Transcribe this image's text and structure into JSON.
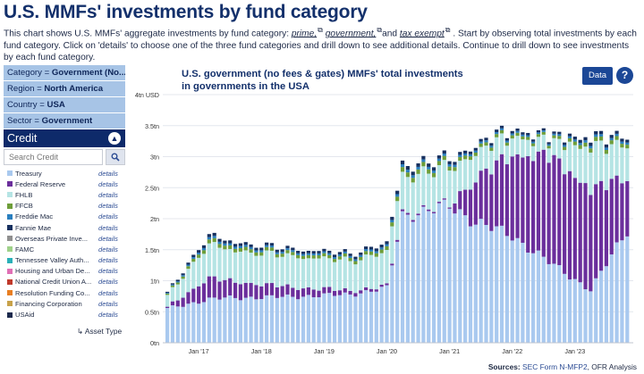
{
  "page": {
    "title": "U.S. MMFs' investments by fund category",
    "intro_pre": "This chart shows U.S. MMFs' aggregate investments by fund category: ",
    "link_prime": "prime,",
    "link_government": "government,",
    "intro_and": "and ",
    "link_tax_exempt": "tax exempt",
    "intro_post": ". Start by observing total investments by each fund category. Click on 'details' to choose one of the three fund categories and drill down to see additional details. Continue to drill down to see investments by each fund category."
  },
  "filters": [
    {
      "label": "Category = ",
      "value": "Government (No..."
    },
    {
      "label": "Region = ",
      "value": "North America"
    },
    {
      "label": "Country = ",
      "value": "USA"
    },
    {
      "label": "Sector = ",
      "value": "Government"
    }
  ],
  "panel": {
    "title": "Credit",
    "search_placeholder": "Search Credit",
    "details_label": "details",
    "asset_type_label": "↳ Asset Type",
    "categories": [
      {
        "name": "Treasury",
        "color": "#a9c9ef"
      },
      {
        "name": "Federal Reserve",
        "color": "#6b2f9c"
      },
      {
        "name": "FHLB",
        "color": "#b5e4e4"
      },
      {
        "name": "FFCB",
        "color": "#6e9e3a"
      },
      {
        "name": "Freddie Mac",
        "color": "#2a7fbf"
      },
      {
        "name": "Fannie Mae",
        "color": "#17305f"
      },
      {
        "name": "Overseas Private Inve...",
        "color": "#8f8f8f"
      },
      {
        "name": "FAMC",
        "color": "#9fd18a"
      },
      {
        "name": "Tennessee Valley Auth...",
        "color": "#2ab0b8"
      },
      {
        "name": "Housing and Urban De...",
        "color": "#e06fb5"
      },
      {
        "name": "National Credit Union A...",
        "color": "#c0392b"
      },
      {
        "name": "Resolution Funding Co...",
        "color": "#e87e22"
      },
      {
        "name": "Financing Corporation",
        "color": "#c8a24a"
      },
      {
        "name": "USAid",
        "color": "#1c2a4d"
      }
    ]
  },
  "chart": {
    "title_line1": "U.S. government (no fees & gates) MMFs' total investments",
    "title_line2": "in governments in the USA",
    "data_button": "Data",
    "help_button": "?",
    "sources_label": "Sources:",
    "sources_link": "SEC Form N-MFP2",
    "sources_rest": ", OFR Analysis"
  },
  "chart_data": {
    "type": "bar",
    "stacked": true,
    "title": "U.S. government (no fees & gates) MMFs' total investments in governments in the USA",
    "ylabel": "",
    "y_unit_label": "USD",
    "ylim": [
      0,
      4
    ],
    "y_ticks": [
      "0tn",
      "0.5tn",
      "1tn",
      "1.5tn",
      "2tn",
      "2.5tn",
      "3tn",
      "3.5tn",
      "4tn"
    ],
    "x_tick_labels": [
      "Jan '17",
      "Jan '18",
      "Jan '19",
      "Jan '20",
      "Jan '21",
      "Jan '22",
      "Jan '23"
    ],
    "x_start": "2016-07",
    "x_end": "2023-11",
    "grid": true,
    "series_order": [
      "Treasury",
      "Federal Reserve",
      "FHLB",
      "FFCB",
      "Freddie Mac",
      "Fannie Mae"
    ],
    "key_points": [
      {
        "month": "2016-07",
        "treasury": 0.55,
        "federal_reserve": 0.02,
        "fhlb": 0.18,
        "other": 0.05
      },
      {
        "month": "2017-03",
        "treasury": 0.7,
        "federal_reserve": 0.35,
        "fhlb": 0.55,
        "other": 0.15
      },
      {
        "month": "2017-06",
        "treasury": 0.72,
        "federal_reserve": 0.28,
        "fhlb": 0.5,
        "other": 0.14
      },
      {
        "month": "2018-06",
        "treasury": 0.74,
        "federal_reserve": 0.16,
        "fhlb": 0.5,
        "other": 0.12
      },
      {
        "month": "2019-06",
        "treasury": 0.78,
        "federal_reserve": 0.06,
        "fhlb": 0.48,
        "other": 0.12
      },
      {
        "month": "2020-01",
        "treasury": 0.88,
        "federal_reserve": 0.03,
        "fhlb": 0.55,
        "other": 0.14
      },
      {
        "month": "2020-04",
        "treasury": 2.05,
        "federal_reserve": 0.03,
        "fhlb": 0.62,
        "other": 0.18
      },
      {
        "month": "2021-01",
        "treasury": 2.2,
        "federal_reserve": 0.02,
        "fhlb": 0.58,
        "other": 0.15
      },
      {
        "month": "2021-06",
        "treasury": 1.95,
        "federal_reserve": 0.7,
        "fhlb": 0.42,
        "other": 0.13
      },
      {
        "month": "2022-01",
        "treasury": 1.72,
        "federal_reserve": 1.3,
        "fhlb": 0.3,
        "other": 0.12
      },
      {
        "month": "2022-08",
        "treasury": 1.3,
        "federal_reserve": 1.72,
        "fhlb": 0.22,
        "other": 0.1
      },
      {
        "month": "2023-04",
        "treasury": 0.85,
        "federal_reserve": 1.62,
        "fhlb": 0.68,
        "other": 0.16
      },
      {
        "month": "2023-11",
        "treasury": 1.82,
        "federal_reserve": 0.85,
        "fhlb": 0.52,
        "other": 0.14
      }
    ]
  }
}
